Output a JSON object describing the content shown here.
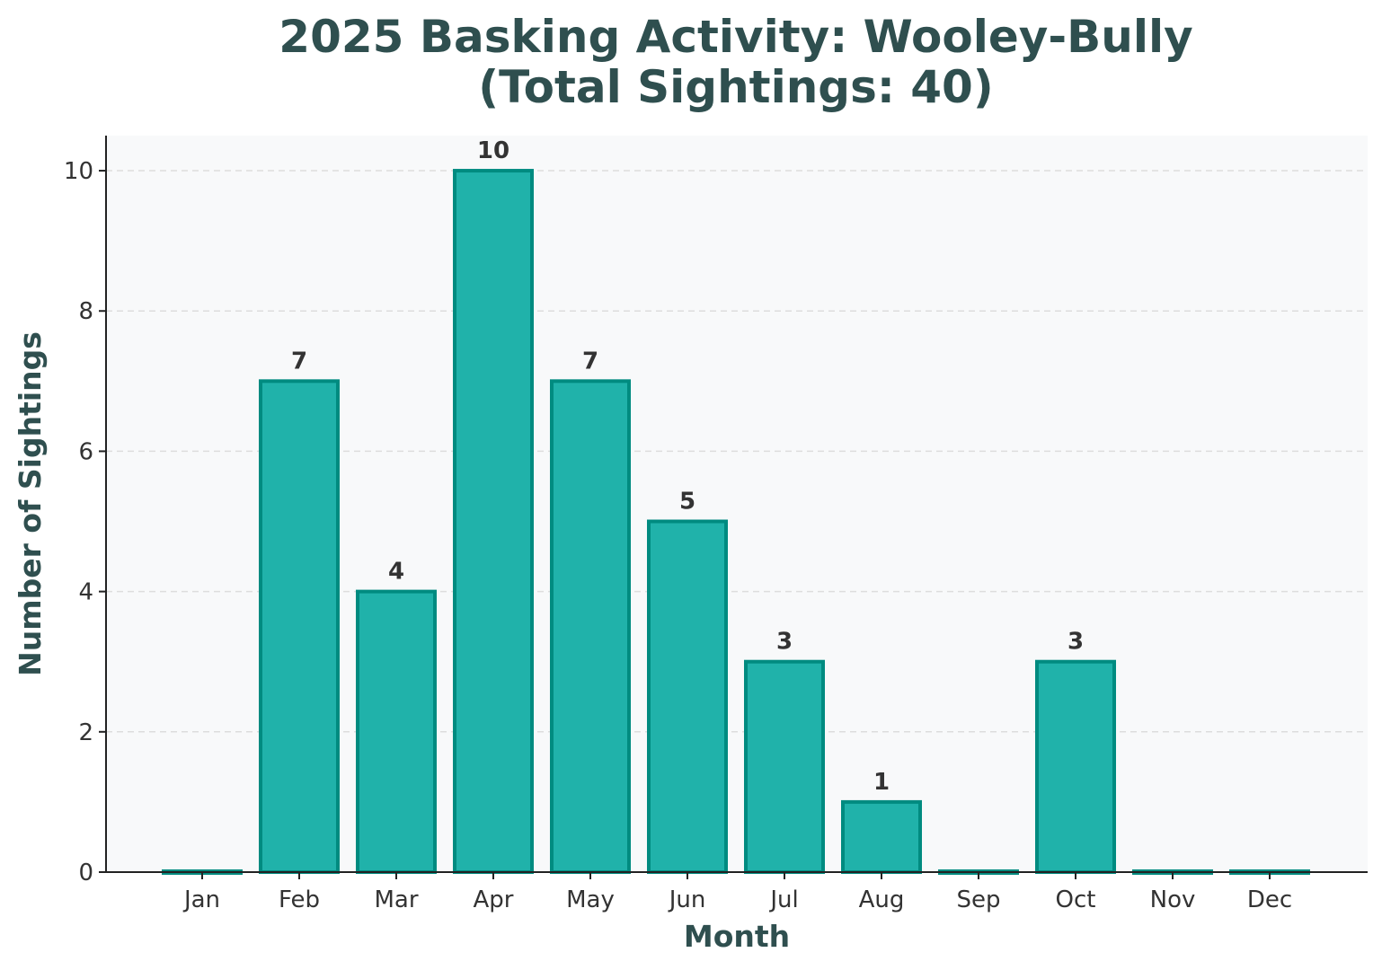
{
  "chart_data": {
    "type": "bar",
    "title_lines": [
      "2025 Basking Activity: Wooley-Bully",
      "(Total Sightings: 40)"
    ],
    "xlabel": "Month",
    "ylabel": "Number of Sightings",
    "categories": [
      "Jan",
      "Feb",
      "Mar",
      "Apr",
      "May",
      "Jun",
      "Jul",
      "Aug",
      "Sep",
      "Oct",
      "Nov",
      "Dec"
    ],
    "values": [
      0,
      7,
      4,
      10,
      7,
      5,
      3,
      1,
      0,
      3,
      0,
      0
    ],
    "value_labels": [
      "",
      "7",
      "4",
      "10",
      "7",
      "5",
      "3",
      "1",
      "",
      "3",
      "",
      ""
    ],
    "ylim": [
      0,
      10.5
    ],
    "yticks": [
      0,
      2,
      4,
      6,
      8,
      10
    ],
    "ytick_labels": [
      "0",
      "2",
      "4",
      "6",
      "8",
      "10"
    ],
    "grid": "horizontal-dashed",
    "colors": {
      "bar_fill": "#20b2aa",
      "bar_edge": "#008b80",
      "plot_background": "#f8f9fa",
      "title": "#2f4f4f",
      "text": "#333333",
      "grid": "#dddddd"
    }
  }
}
